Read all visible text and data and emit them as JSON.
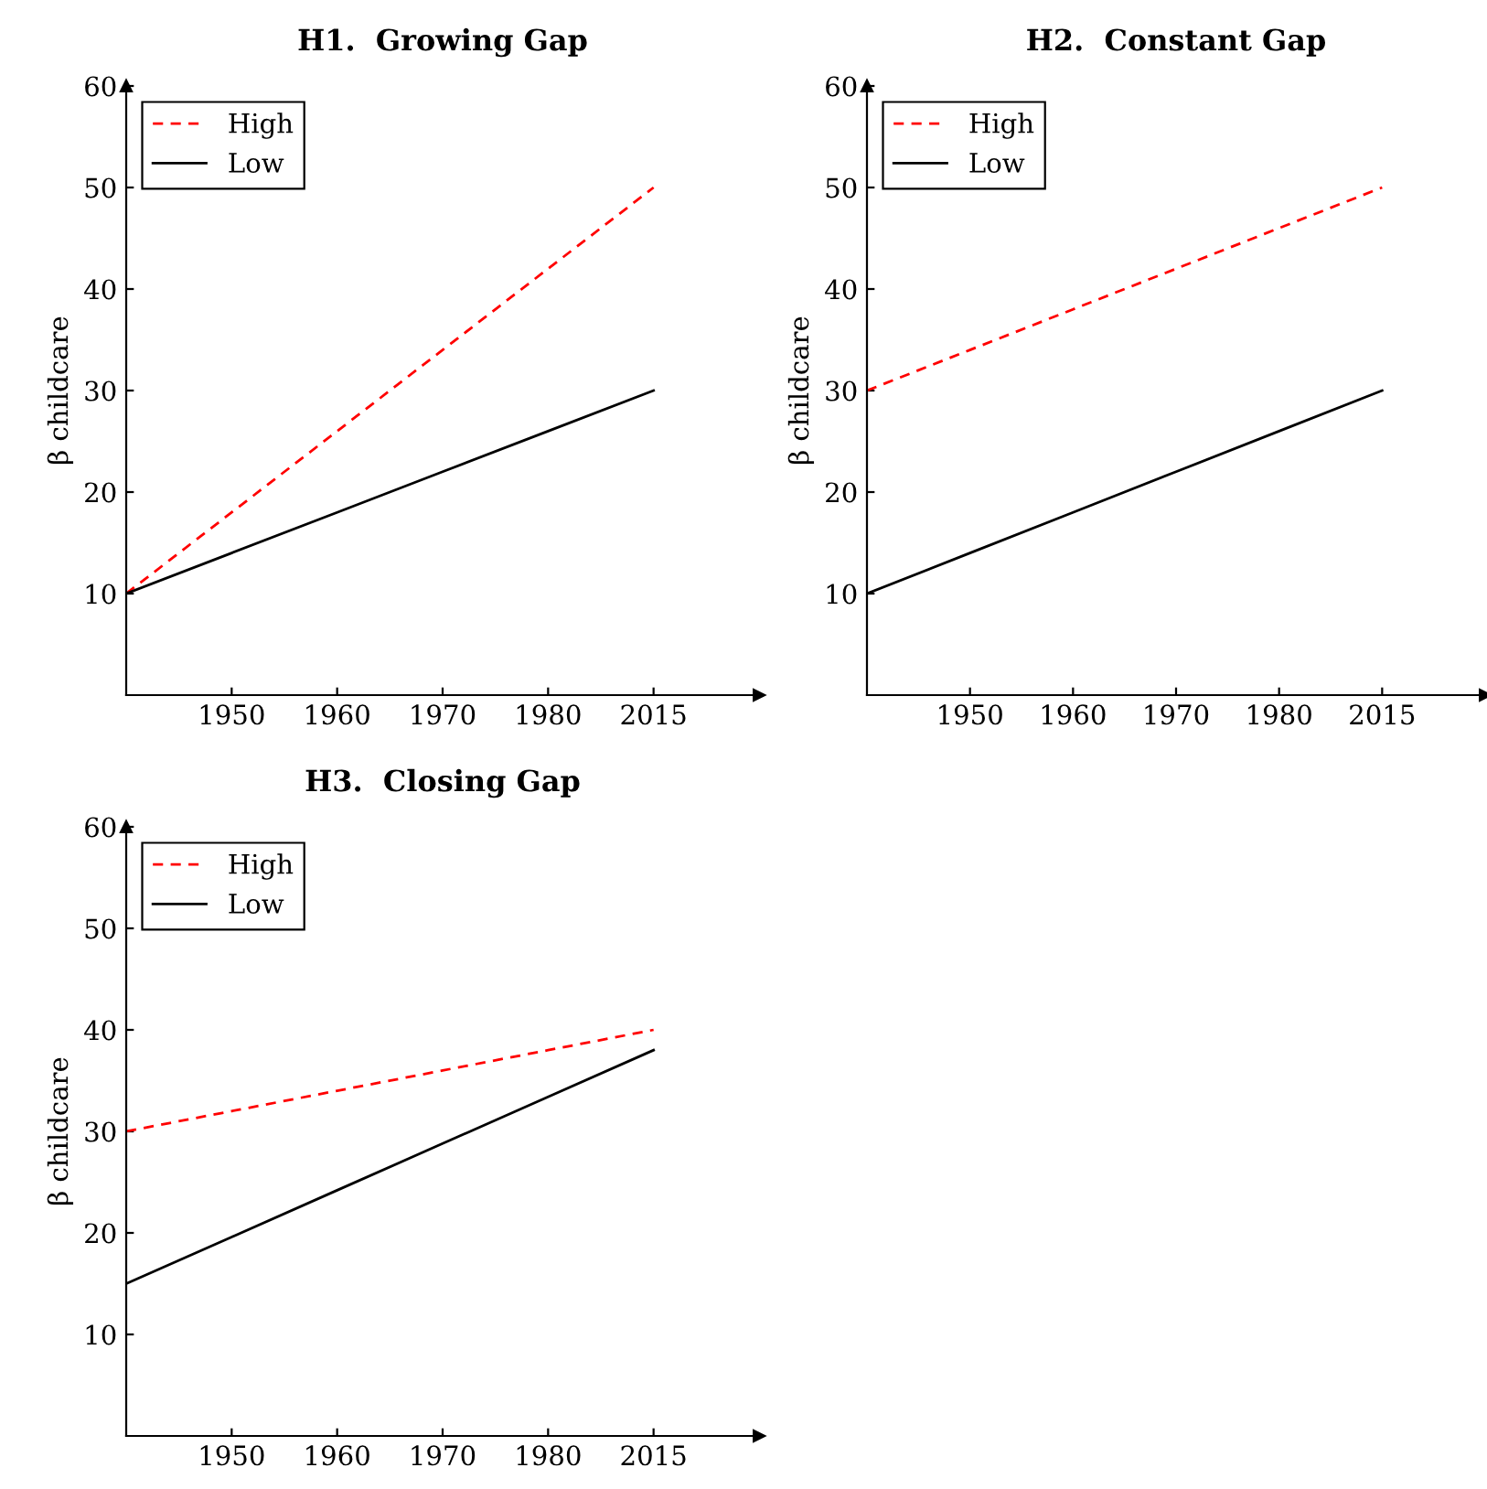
{
  "chart_data": [
    {
      "type": "line",
      "title": "H1.  Growing Gap",
      "ylabel": "β childcare",
      "categories": [
        null,
        "1950",
        "1960",
        "1970",
        "1980",
        "2015",
        null
      ],
      "ylim": [
        0,
        60
      ],
      "yticks": [
        10,
        20,
        30,
        40,
        50,
        60
      ],
      "legend": "top left",
      "grid": false,
      "marker": "none",
      "series": [
        {
          "name": "High",
          "color": "#ff0000",
          "line_style": "dashed",
          "values": [
            10,
            18,
            26,
            34,
            42,
            50,
            null
          ]
        },
        {
          "name": "Low",
          "color": "#000000",
          "line_style": "solid",
          "values": [
            10,
            14,
            18,
            22,
            26,
            30,
            null
          ]
        }
      ]
    },
    {
      "type": "line",
      "title": "H2.  Constant Gap",
      "ylabel": "β childcare",
      "categories": [
        null,
        "1950",
        "1960",
        "1970",
        "1980",
        "2015",
        null
      ],
      "ylim": [
        0,
        60
      ],
      "yticks": [
        10,
        20,
        30,
        40,
        50,
        60
      ],
      "legend": "top left",
      "grid": false,
      "marker": "none",
      "series": [
        {
          "name": "High",
          "color": "#ff0000",
          "line_style": "dashed",
          "values": [
            30,
            34,
            38,
            42,
            46,
            50,
            null
          ]
        },
        {
          "name": "Low",
          "color": "#000000",
          "line_style": "solid",
          "values": [
            10,
            14,
            18,
            22,
            26,
            30,
            null
          ]
        }
      ]
    },
    {
      "type": "line",
      "title": "H3.  Closing Gap",
      "ylabel": "β childcare",
      "categories": [
        null,
        "1950",
        "1960",
        "1970",
        "1980",
        "2015",
        null
      ],
      "ylim": [
        0,
        60
      ],
      "yticks": [
        10,
        20,
        30,
        40,
        50,
        60
      ],
      "legend": "top left",
      "grid": false,
      "marker": "none",
      "series": [
        {
          "name": "High",
          "color": "#ff0000",
          "line_style": "dashed",
          "values": [
            30,
            32,
            34,
            36,
            38,
            40,
            null
          ]
        },
        {
          "name": "Low",
          "color": "#000000",
          "line_style": "solid",
          "values": [
            15,
            19.6,
            24.2,
            28.8,
            33.4,
            38,
            null
          ]
        }
      ]
    }
  ]
}
